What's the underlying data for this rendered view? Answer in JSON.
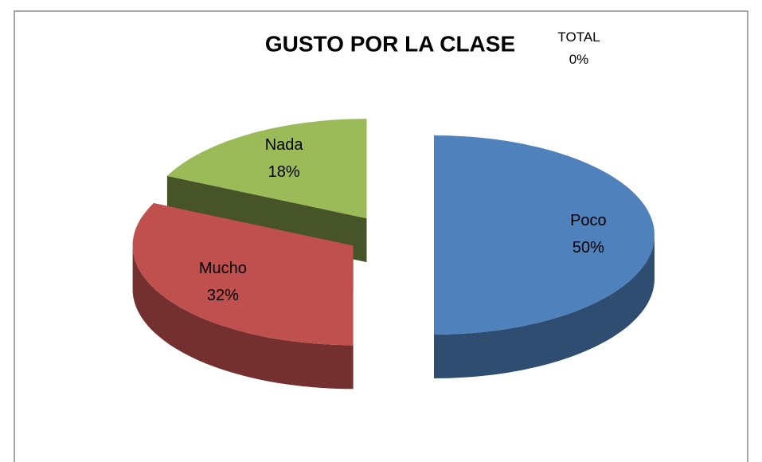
{
  "chart_data": {
    "type": "pie",
    "title": "GUSTO POR LA CLASE",
    "categories": [
      "Poco",
      "Mucho",
      "Nada",
      "TOTAL"
    ],
    "values": [
      50,
      32,
      18,
      0
    ],
    "value_labels": [
      "50%",
      "32%",
      "18%",
      "0%"
    ],
    "colors": [
      "#4f81bd",
      "#c0504d",
      "#9bbb59",
      "#8064a2"
    ]
  }
}
